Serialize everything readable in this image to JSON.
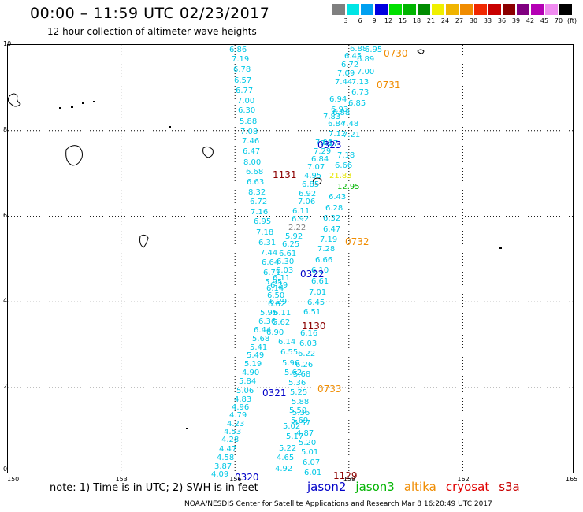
{
  "header": {
    "title": "00:00 – 11:59 UTC 02/23/2017",
    "subtitle": "12 hour collection of altimeter wave heights"
  },
  "legend": {
    "unit": "(ft)",
    "items": [
      {
        "label": "3",
        "color": "#7f7f7f"
      },
      {
        "label": "6",
        "color": "#00e5e5"
      },
      {
        "label": "9",
        "color": "#00a0f0"
      },
      {
        "label": "12",
        "color": "#0000e0"
      },
      {
        "label": "15",
        "color": "#00e000"
      },
      {
        "label": "18",
        "color": "#00b400"
      },
      {
        "label": "21",
        "color": "#008c00"
      },
      {
        "label": "24",
        "color": "#f0f000"
      },
      {
        "label": "27",
        "color": "#f0b400"
      },
      {
        "label": "30",
        "color": "#f08c00"
      },
      {
        "label": "33",
        "color": "#f02800"
      },
      {
        "label": "36",
        "color": "#c80000"
      },
      {
        "label": "39",
        "color": "#8c0000"
      },
      {
        "label": "42",
        "color": "#800080"
      },
      {
        "label": "45",
        "color": "#b400b4"
      },
      {
        "label": "70",
        "color": "#f08cf0"
      },
      {
        "label": "",
        "color": "#000000"
      }
    ]
  },
  "axes": {
    "x_ticks": [
      "150",
      "153",
      "156",
      "159",
      "162",
      "165"
    ],
    "y_ticks": [
      "0",
      "2",
      "4",
      "6",
      "8",
      "10"
    ]
  },
  "track_colors": {
    "cyan": "#00c8e6",
    "blue": "#0000c8",
    "orange": "#f08c00",
    "darkred": "#8c0000",
    "gray": "#7f7f7f",
    "yellow": "#e6e600",
    "green": "#00b400"
  },
  "observations": [
    [
      "6.86",
      "cyan"
    ],
    [
      "7.19",
      "cyan"
    ],
    [
      "6.78",
      "cyan"
    ],
    [
      "6.57",
      "cyan"
    ],
    [
      "6.77",
      "cyan"
    ],
    [
      "7.00",
      "cyan"
    ],
    [
      "6.30",
      "cyan"
    ],
    [
      "5.88",
      "cyan"
    ],
    [
      "7.08",
      "cyan"
    ],
    [
      "7.46",
      "cyan"
    ],
    [
      "6.47",
      "cyan"
    ],
    [
      "8.00",
      "cyan"
    ],
    [
      "6.68",
      "cyan"
    ],
    [
      "6.63",
      "cyan"
    ],
    [
      "8.32",
      "cyan"
    ],
    [
      "6.72",
      "cyan"
    ],
    [
      "7.16",
      "cyan"
    ],
    [
      "6.95",
      "cyan"
    ],
    [
      "7.18",
      "cyan"
    ],
    [
      "6.31",
      "cyan"
    ],
    [
      "7.44",
      "cyan"
    ],
    [
      "6.64",
      "cyan"
    ],
    [
      "6.71",
      "cyan"
    ],
    [
      "5.95",
      "cyan"
    ],
    [
      "6.14",
      "cyan"
    ],
    [
      "6.50",
      "cyan"
    ],
    [
      "6.62",
      "cyan"
    ],
    [
      "5.95",
      "cyan"
    ],
    [
      "6.36",
      "cyan"
    ],
    [
      "6.44",
      "cyan"
    ],
    [
      "5.68",
      "cyan"
    ],
    [
      "5.41",
      "cyan"
    ],
    [
      "5.49",
      "cyan"
    ],
    [
      "5.19",
      "cyan"
    ],
    [
      "4.90",
      "cyan"
    ],
    [
      "5.84",
      "cyan"
    ],
    [
      "5.06",
      "cyan"
    ],
    [
      "4.83",
      "cyan"
    ],
    [
      "4.96",
      "cyan"
    ],
    [
      "4.79",
      "cyan"
    ],
    [
      "4.23",
      "cyan"
    ],
    [
      "4.53",
      "cyan"
    ],
    [
      "4.28",
      "cyan"
    ],
    [
      "4.47",
      "cyan"
    ],
    [
      "4.58",
      "cyan"
    ],
    [
      "3.87",
      "cyan"
    ],
    [
      "4.09",
      "cyan"
    ],
    [
      "6.88",
      "cyan"
    ],
    [
      "6.45",
      "cyan"
    ],
    [
      "6.95",
      "cyan"
    ],
    [
      "6.89",
      "cyan"
    ],
    [
      "6.72",
      "cyan"
    ],
    [
      "7.00",
      "cyan"
    ],
    [
      "7.09",
      "cyan"
    ],
    [
      "7.44",
      "cyan"
    ],
    [
      "7.13",
      "cyan"
    ],
    [
      "6.73",
      "cyan"
    ],
    [
      "6.94",
      "cyan"
    ],
    [
      "6.85",
      "cyan"
    ],
    [
      "6.93",
      "cyan"
    ],
    [
      "6.88",
      "cyan"
    ],
    [
      "6.84",
      "cyan"
    ],
    [
      "7.83",
      "cyan"
    ],
    [
      "7.48",
      "cyan"
    ],
    [
      "7.12",
      "cyan"
    ],
    [
      "7.21",
      "cyan"
    ],
    [
      "7.17",
      "cyan"
    ],
    [
      "7.08",
      "cyan"
    ],
    [
      "7.29",
      "cyan"
    ],
    [
      "7.18",
      "cyan"
    ],
    [
      "6.84",
      "cyan"
    ],
    [
      "7.07",
      "cyan"
    ],
    [
      "6.66",
      "cyan"
    ],
    [
      "4.95",
      "cyan"
    ],
    [
      "21.83",
      "yellow"
    ],
    [
      "6.85",
      "cyan"
    ],
    [
      "12.95",
      "green"
    ],
    [
      "6.92",
      "cyan"
    ],
    [
      "6.43",
      "cyan"
    ],
    [
      "7.06",
      "cyan"
    ],
    [
      "6.28",
      "cyan"
    ],
    [
      "6.11",
      "cyan"
    ],
    [
      "6.32",
      "cyan"
    ],
    [
      "6.92",
      "cyan"
    ],
    [
      "2.22",
      "gray"
    ],
    [
      "6.47",
      "cyan"
    ],
    [
      "5.92",
      "cyan"
    ],
    [
      "7.19",
      "cyan"
    ],
    [
      "6.25",
      "cyan"
    ],
    [
      "7.28",
      "cyan"
    ],
    [
      "6.61",
      "cyan"
    ],
    [
      "6.30",
      "cyan"
    ],
    [
      "6.66",
      "cyan"
    ],
    [
      "6.03",
      "cyan"
    ],
    [
      "6.10",
      "cyan"
    ],
    [
      "6.11",
      "cyan"
    ],
    [
      "6.61",
      "cyan"
    ],
    [
      "6.29",
      "cyan"
    ],
    [
      "7.01",
      "cyan"
    ],
    [
      "6.29",
      "cyan"
    ],
    [
      "6.45",
      "cyan"
    ],
    [
      "6.11",
      "cyan"
    ],
    [
      "6.51",
      "cyan"
    ],
    [
      "5.62",
      "cyan"
    ],
    [
      "6.90",
      "cyan"
    ],
    [
      "6.16",
      "cyan"
    ],
    [
      "6.14",
      "cyan"
    ],
    [
      "6.03",
      "cyan"
    ],
    [
      "6.55",
      "cyan"
    ],
    [
      "6.22",
      "cyan"
    ],
    [
      "5.96",
      "cyan"
    ],
    [
      "6.26",
      "cyan"
    ],
    [
      "5.62",
      "cyan"
    ],
    [
      "5.68",
      "cyan"
    ],
    [
      "5.36",
      "cyan"
    ],
    [
      "5.25",
      "cyan"
    ],
    [
      "5.88",
      "cyan"
    ],
    [
      "5.50",
      "cyan"
    ],
    [
      "5.36",
      "cyan"
    ],
    [
      "5.69",
      "cyan"
    ],
    [
      "5.57",
      "cyan"
    ],
    [
      "5.17",
      "cyan"
    ],
    [
      "4.87",
      "cyan"
    ],
    [
      "5.02",
      "cyan"
    ],
    [
      "5.20",
      "cyan"
    ],
    [
      "5.22",
      "cyan"
    ],
    [
      "5.01",
      "cyan"
    ],
    [
      "4.65",
      "cyan"
    ],
    [
      "6.07",
      "cyan"
    ],
    [
      "4.92",
      "cyan"
    ],
    [
      "6.01",
      "cyan"
    ]
  ],
  "time_labels": [
    {
      "text": "0730",
      "color": "orange"
    },
    {
      "text": "0731",
      "color": "orange"
    },
    {
      "text": "0323",
      "color": "blue"
    },
    {
      "text": "1131",
      "color": "darkred"
    },
    {
      "text": "0732",
      "color": "orange"
    },
    {
      "text": "0322",
      "color": "blue"
    },
    {
      "text": "1130",
      "color": "darkred"
    },
    {
      "text": "0733",
      "color": "orange"
    },
    {
      "text": "0321",
      "color": "blue"
    },
    {
      "text": "0320",
      "color": "blue"
    },
    {
      "text": "1129",
      "color": "darkred"
    }
  ],
  "footer": {
    "note": "note: 1) Time is in UTC; 2) SWH is in feet",
    "satellites": [
      {
        "name": "jason2",
        "color": "#0000c8"
      },
      {
        "name": "jason3",
        "color": "#00b400"
      },
      {
        "name": "altika",
        "color": "#f08c00"
      },
      {
        "name": "cryosat",
        "color": "#e00000"
      },
      {
        "name": "s3a",
        "color": "#c80000"
      }
    ],
    "credit": "NOAA/NESDIS Center for Satellite Applications and Research     Mar  8 16:20:49 UTC 2017"
  }
}
